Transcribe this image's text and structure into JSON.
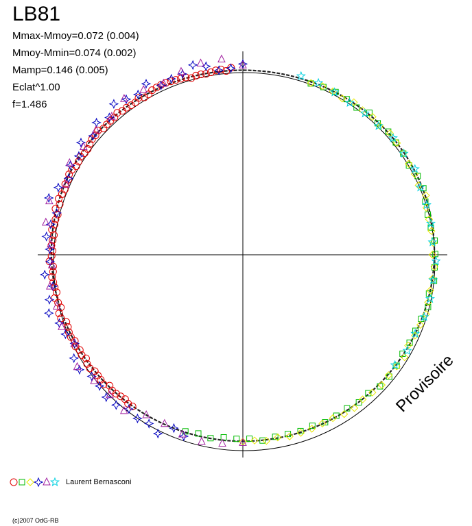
{
  "title": "LB81",
  "stats": [
    "Mmax-Mmoy=0.072 (0.004)",
    "Mmoy-Mmin=0.074 (0.002)",
    "Mamp=0.146 (0.005)",
    "Eclat^1.00",
    "f=1.486"
  ],
  "watermark": "Provisoire",
  "legend": {
    "author": "Laurent Bernasconi",
    "symbols": [
      "circle",
      "square",
      "diamond",
      "star4",
      "triangle",
      "star5"
    ],
    "colors": [
      "#e00000",
      "#00bb00",
      "#e8e800",
      "#0000c0",
      "#a020a0",
      "#00d0e0"
    ]
  },
  "copyright": "(c)2007 OdG-RB",
  "chart_data": {
    "type": "scatter",
    "projection": "polar",
    "axis_ranges_note": "angle = phase (0..1), radius = normalized magnitude",
    "series": [
      {
        "symbol": "circle",
        "color": "#e00000",
        "phase_range": [
          0.6,
          0.99
        ],
        "count": 90
      },
      {
        "symbol": "square",
        "color": "#00bb00",
        "phase_range": [
          0.06,
          0.55
        ],
        "count": 45
      },
      {
        "symbol": "diamond",
        "color": "#e8e800",
        "phase_range": [
          0.06,
          0.5
        ],
        "count": 45
      },
      {
        "symbol": "star4",
        "color": "#0000c0",
        "phase_range": [
          0.55,
          1.0
        ],
        "count": 45
      },
      {
        "symbol": "triangle",
        "color": "#a020a0",
        "phase_range": [
          0.5,
          1.0
        ],
        "count": 30
      },
      {
        "symbol": "star5",
        "color": "#00d0e0",
        "phase_range": [
          0.05,
          0.35
        ],
        "count": 20
      }
    ],
    "grid": false,
    "axes": "crosshair through center"
  }
}
